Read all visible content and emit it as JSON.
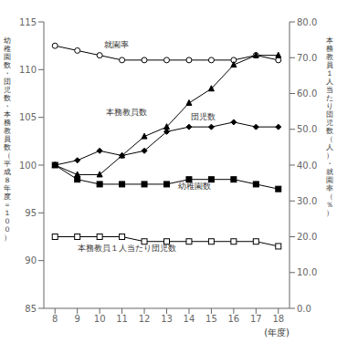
{
  "chart_data": {
    "type": "line",
    "x": [
      8,
      9,
      10,
      11,
      12,
      13,
      14,
      15,
      16,
      17,
      18
    ],
    "series": [
      {
        "name": "幼稚園数",
        "color": "#000000",
        "marker": "square",
        "values": [
          100.0,
          98.5,
          98.0,
          98.0,
          98.0,
          98.0,
          98.5,
          98.5,
          98.5,
          98.0,
          97.5
        ]
      },
      {
        "name": "就園率",
        "color": "#000000",
        "marker": "circle_open",
        "values": [
          112.5,
          112.0,
          111.5,
          111.0,
          111.0,
          111.0,
          111.0,
          111.0,
          111.0,
          111.5,
          111.0
        ]
      },
      {
        "name": "本務教員数",
        "color": "#000000",
        "marker": "triangle",
        "values": [
          100.0,
          99.0,
          99.0,
          101.0,
          103.0,
          104.0,
          106.5,
          108.0,
          110.5,
          111.5,
          111.5
        ]
      },
      {
        "name": "団児数",
        "color": "#000000",
        "marker": "diamond",
        "values": [
          100.0,
          100.5,
          101.5,
          101.0,
          101.5,
          103.5,
          104.0,
          104.0,
          104.5,
          104.0,
          104.0
        ]
      },
      {
        "name": "本務教員１人当たり団児数",
        "color": "#000000",
        "marker": "square_open",
        "values": [
          92.5,
          92.5,
          92.5,
          92.5,
          92.0,
          92.0,
          92.0,
          92.0,
          92.0,
          92.0,
          91.5
        ]
      }
    ],
    "xlim": [
      7.5,
      18.5
    ],
    "xticks": [
      8,
      9,
      10,
      11,
      12,
      13,
      14,
      15,
      16,
      17,
      18
    ],
    "ylim": [
      85,
      115
    ],
    "yticks": [
      85,
      90,
      95,
      100,
      105,
      110,
      115
    ],
    "y2lim": [
      0.0,
      80.0
    ],
    "y2ticks": [
      {
        "value": 0,
        "label": "0.0"
      },
      {
        "value": 10,
        "label": "10.0"
      },
      {
        "value": 20,
        "label": "20.0"
      },
      {
        "value": 30,
        "label": "30.0"
      },
      {
        "value": 40,
        "label": "40.0"
      },
      {
        "value": 50,
        "label": "50.0"
      },
      {
        "value": 60,
        "label": "60.0"
      },
      {
        "value": 70,
        "label": "70.0"
      },
      {
        "value": 80,
        "label": "80.0"
      }
    ],
    "xlabel": "(年度)",
    "ylabel": "幼稚園数・団児数・本務教員数（平成８年度＝１００）",
    "y2label": "本務教員１人当たり団児数（人）・就園率（％）",
    "annotations": [
      {
        "text": "就園率",
        "x": 10.2,
        "y": 111.8
      },
      {
        "text": "本務教員数",
        "x": 10.3,
        "y": 104.8
      },
      {
        "text": "団児数",
        "x": 14.1,
        "y": 104.3
      },
      {
        "text": "幼稚園数",
        "x": 13.5,
        "y": 97.0
      },
      {
        "text": "本務教員１人当たり団児数",
        "x": 9.0,
        "y": 90.5
      }
    ],
    "grid": false
  }
}
